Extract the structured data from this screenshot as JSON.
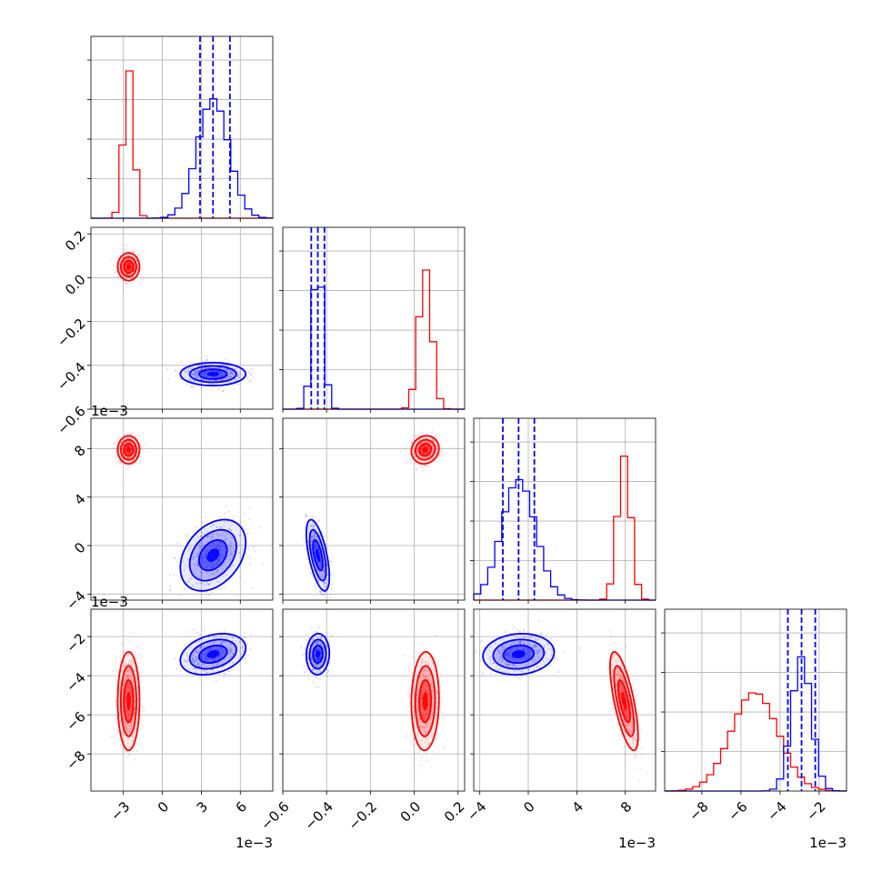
{
  "chart_data": {
    "type": "corner",
    "parameters": [
      {
        "range": [
          -0.0055,
          0.0085
        ],
        "ticks": [
          -0.003,
          0,
          0.003,
          0.006
        ],
        "tick_labels": [
          "−3",
          "0",
          "3",
          "6"
        ],
        "offset": "1e−3"
      },
      {
        "range": [
          -0.6,
          0.23
        ],
        "ticks": [
          -0.6,
          -0.4,
          -0.2,
          0.0,
          0.2
        ],
        "tick_labels": [
          "−0.6",
          "−0.4",
          "−0.2",
          "0.0",
          "0.2"
        ],
        "offset": ""
      },
      {
        "range": [
          -0.0045,
          0.0105
        ],
        "ticks": [
          -0.004,
          0,
          0.004,
          0.008
        ],
        "tick_labels": [
          "−4",
          "0",
          "4",
          "8"
        ],
        "offset": "1e−3"
      },
      {
        "range": [
          -0.0099,
          -0.0006
        ],
        "ticks": [
          -0.008,
          -0.006,
          -0.004,
          -0.002
        ],
        "tick_labels": [
          "−8",
          "−6",
          "−4",
          "−2"
        ],
        "offset": "1e−3"
      }
    ],
    "series": [
      {
        "color": "#ff0000",
        "mean": [
          -0.0026,
          0.05,
          0.0079,
          -0.0053
        ],
        "std": [
          0.0004,
          0.03,
          0.00055,
          0.0012
        ],
        "corr": [
          [
            0,
            1,
            0
          ],
          [
            0,
            2,
            0
          ],
          [
            0,
            3,
            0
          ],
          [
            1,
            2,
            0.1
          ],
          [
            1,
            3,
            0.05
          ],
          [
            2,
            3,
            -0.7
          ]
        ]
      },
      {
        "color": "#0000ff",
        "mean": [
          0.0039,
          -0.44,
          -0.0008,
          -0.0029
        ],
        "std": [
          0.0012,
          0.025,
          0.0014,
          0.0005
        ],
        "corr": [
          [
            0,
            1,
            0
          ],
          [
            0,
            2,
            0.35
          ],
          [
            0,
            3,
            0.3
          ],
          [
            1,
            2,
            -0.6
          ],
          [
            1,
            3,
            0.05
          ],
          [
            2,
            3,
            0.1
          ]
        ]
      }
    ],
    "quantiles_dashed": [
      [
        0.0029,
        0.0039,
        0.0052
      ],
      [
        -0.47,
        -0.44,
        -0.41
      ],
      [
        -0.0021,
        -0.0008,
        0.0005
      ],
      [
        -0.0036,
        -0.0029,
        -0.0022
      ]
    ]
  }
}
